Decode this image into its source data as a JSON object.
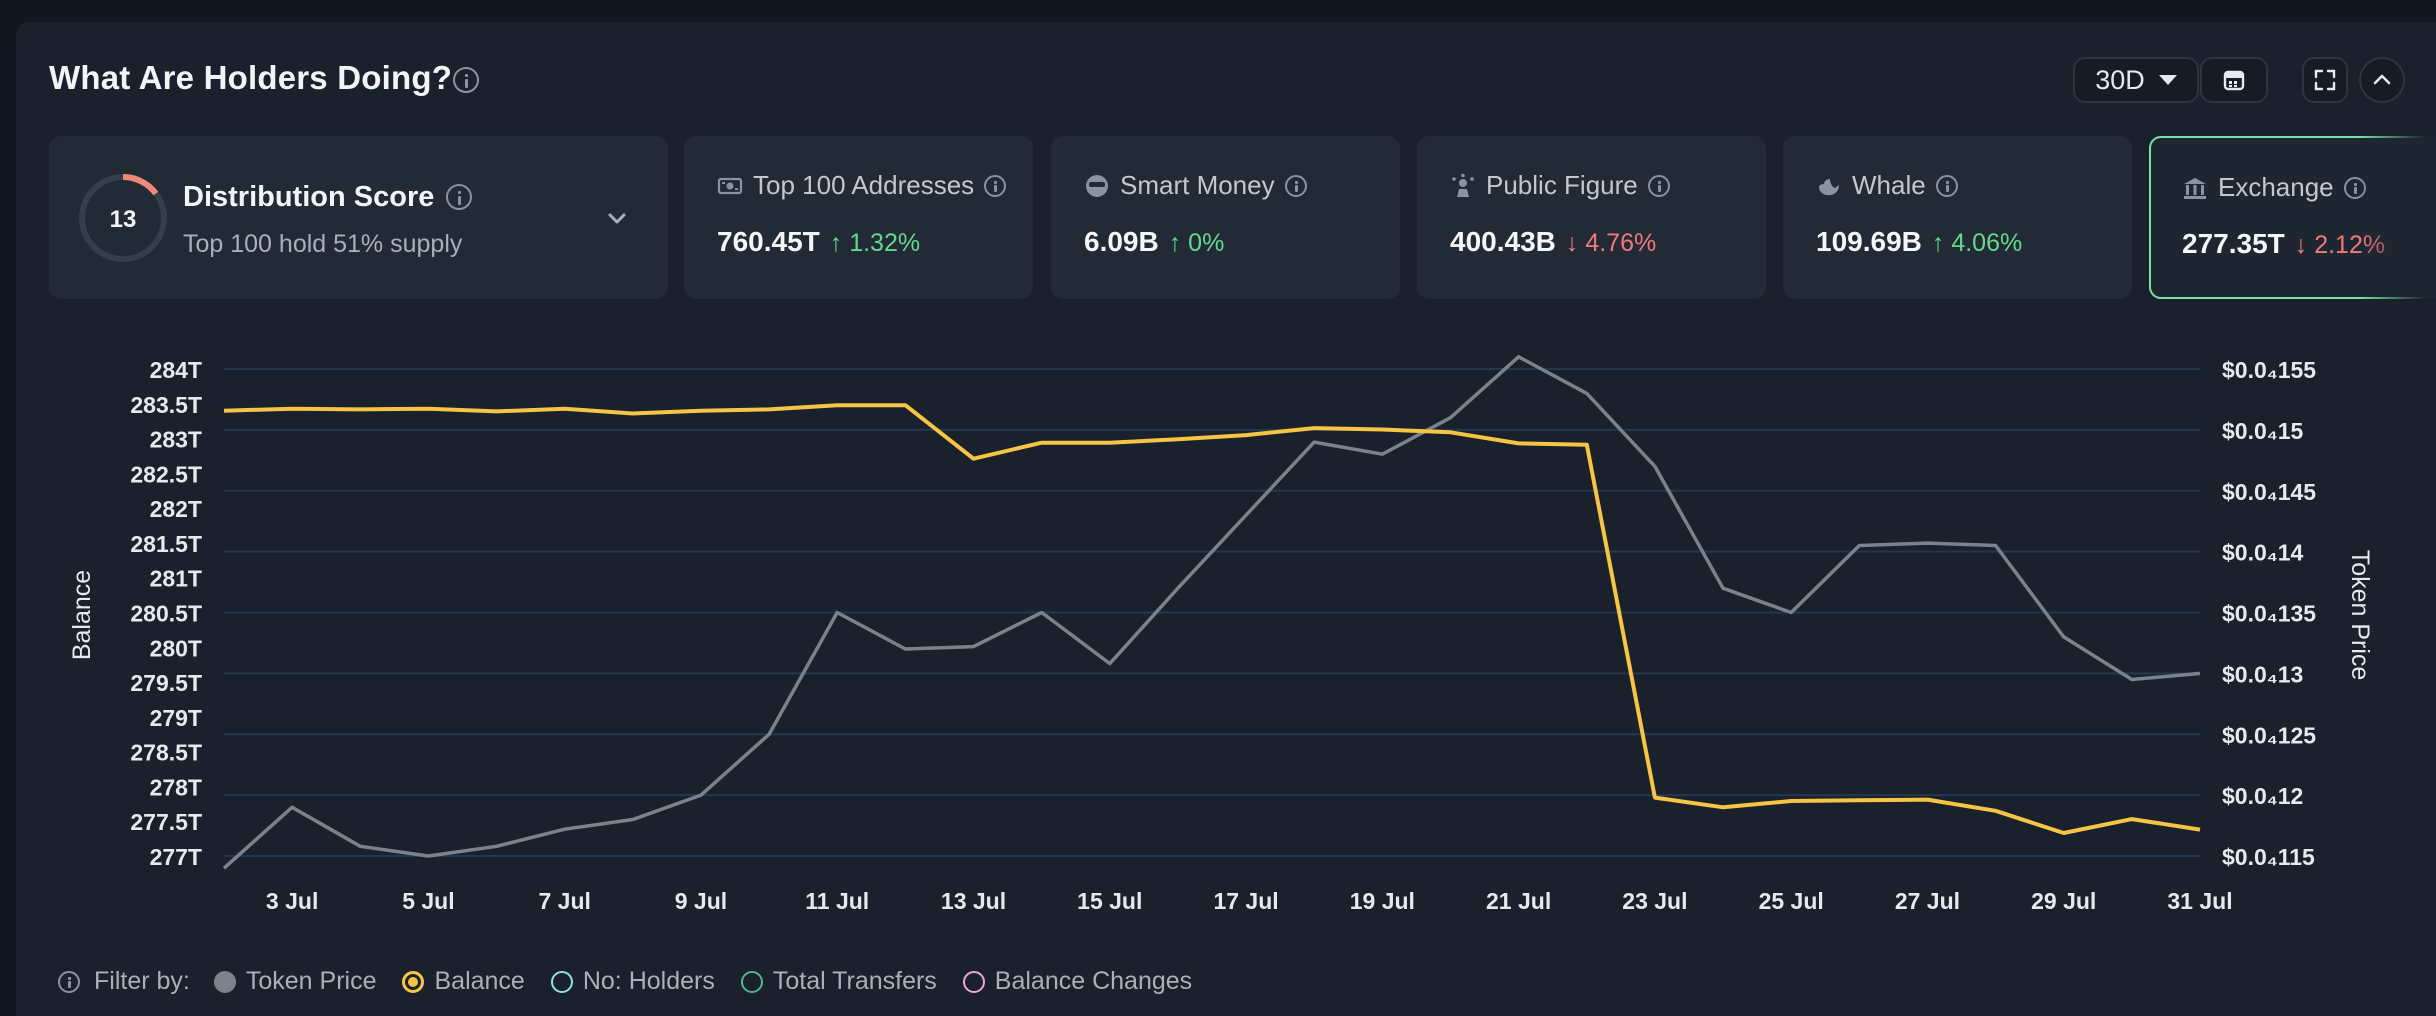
{
  "panel": {
    "title": "What Are Holders Doing?",
    "range": "30D"
  },
  "distribution": {
    "score": "13",
    "title": "Distribution Score",
    "subtitle": "Top 100 hold 51% supply"
  },
  "cards": [
    {
      "label": "Top 100 Addresses",
      "value": "760.45T",
      "change": "1.32%",
      "dir": "up",
      "icon": "money-icon"
    },
    {
      "label": "Smart Money",
      "value": "6.09B",
      "change": "0%",
      "dir": "up",
      "icon": "sunglasses-icon"
    },
    {
      "label": "Public Figure",
      "value": "400.43B",
      "change": "4.76%",
      "dir": "down",
      "icon": "spotlight-icon"
    },
    {
      "label": "Whale",
      "value": "109.69B",
      "change": "4.06%",
      "dir": "up",
      "icon": "whale-icon"
    },
    {
      "label": "Exchange",
      "value": "277.35T",
      "change": "2.12%",
      "dir": "down",
      "icon": "bank-icon"
    }
  ],
  "filters": {
    "label": "Filter by:",
    "items": [
      {
        "label": "Token Price",
        "color": "#7b828c",
        "active": true
      },
      {
        "label": "Balance",
        "color": "#f5c543",
        "active": true
      },
      {
        "label": "No: Holders",
        "color": "#8fe3d6",
        "active": false
      },
      {
        "label": "Total Transfers",
        "color": "#4fb39e",
        "active": false
      },
      {
        "label": "Balance Changes",
        "color": "#e9a7d3",
        "active": false
      }
    ]
  },
  "colors": {
    "balance": "#f5c543",
    "price": "#7b828c",
    "grid": "#23384e",
    "up": "#63d98c",
    "down": "#f07a7a"
  },
  "chart_data": {
    "type": "line",
    "ylabel": "Balance",
    "y2label": "Token Price",
    "x": [
      "2 Jul",
      "3 Jul",
      "4 Jul",
      "5 Jul",
      "6 Jul",
      "7 Jul",
      "8 Jul",
      "9 Jul",
      "10 Jul",
      "11 Jul",
      "12 Jul",
      "13 Jul",
      "14 Jul",
      "15 Jul",
      "16 Jul",
      "17 Jul",
      "18 Jul",
      "19 Jul",
      "20 Jul",
      "21 Jul",
      "22 Jul",
      "23 Jul",
      "24 Jul",
      "25 Jul",
      "26 Jul",
      "27 Jul",
      "28 Jul",
      "29 Jul",
      "30 Jul",
      "31 Jul"
    ],
    "xtick_labels": [
      "3 Jul",
      "5 Jul",
      "7 Jul",
      "9 Jul",
      "11 Jul",
      "13 Jul",
      "15 Jul",
      "17 Jul",
      "19 Jul",
      "21 Jul",
      "23 Jul",
      "25 Jul",
      "27 Jul",
      "29 Jul",
      "31 Jul"
    ],
    "y_ticks": [
      "277T",
      "277.5T",
      "278T",
      "278.5T",
      "279T",
      "279.5T",
      "280T",
      "280.5T",
      "281T",
      "281.5T",
      "282T",
      "282.5T",
      "283T",
      "283.5T",
      "284T"
    ],
    "y_tick_values": [
      277,
      277.5,
      278,
      278.5,
      279,
      279.5,
      280,
      280.5,
      281,
      281.5,
      282,
      282.5,
      283,
      283.5,
      284
    ],
    "y2_ticks": [
      "$0.0₄115",
      "$0.0₄12",
      "$0.0₄125",
      "$0.0₄13",
      "$0.0₄135",
      "$0.0₄14",
      "$0.0₄145",
      "$0.0₄15",
      "$0.0₄155"
    ],
    "y2_tick_values": [
      1.15e-05,
      1.2e-05,
      1.25e-05,
      1.3e-05,
      1.35e-05,
      1.4e-05,
      1.45e-05,
      1.5e-05,
      1.55e-05
    ],
    "ylim": [
      277,
      284
    ],
    "y2lim": [
      1.15e-05,
      1.55e-05
    ],
    "series": [
      {
        "name": "Balance",
        "axis": "left",
        "values": [
          283.4,
          283.43,
          283.42,
          283.43,
          283.39,
          283.43,
          283.36,
          283.4,
          283.42,
          283.48,
          283.48,
          282.71,
          282.94,
          282.94,
          282.99,
          283.05,
          283.15,
          283.13,
          283.09,
          282.93,
          282.91,
          277.84,
          277.7,
          277.79,
          277.8,
          277.81,
          277.65,
          277.33,
          277.53,
          277.38
        ]
      },
      {
        "name": "Token Price",
        "axis": "right",
        "values": [
          1.14e-05,
          1.19e-05,
          1.158e-05,
          1.15e-05,
          1.158e-05,
          1.172e-05,
          1.18e-05,
          1.2e-05,
          1.25e-05,
          1.35e-05,
          1.32e-05,
          1.322e-05,
          1.35e-05,
          1.308e-05,
          1.37e-05,
          1.43e-05,
          1.49e-05,
          1.48e-05,
          1.51e-05,
          1.56e-05,
          1.53e-05,
          1.47e-05,
          1.37e-05,
          1.35e-05,
          1.405e-05,
          1.407e-05,
          1.405e-05,
          1.33e-05,
          1.295e-05,
          1.3e-05
        ]
      }
    ]
  }
}
